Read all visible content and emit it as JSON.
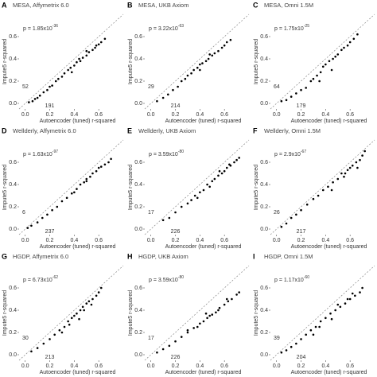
{
  "chart_data": [
    {
      "type": "scatter",
      "panel_label": "A",
      "title": "MESA, Affymetrix 6.0",
      "p_value": "p = 1.85x10",
      "p_exponent": "-36",
      "count_left": 52,
      "count_bottom": 191,
      "xlabel": "Autoencoder (tuned) r-squared",
      "ylabel": "Impute5 r-squared",
      "color": "#000000",
      "xlim": [
        -0.05,
        0.8
      ],
      "ylim": [
        -0.05,
        0.8
      ],
      "xticks": [
        {
          "value": 0,
          "label": "0.0"
        },
        0.2,
        0.4,
        0.6
      ],
      "yticks": [
        {
          "value": 0,
          "label": "0.0"
        },
        0.2,
        0.4,
        0.6
      ],
      "x": [
        0.03,
        0.06,
        0.08,
        0.1,
        0.12,
        0.15,
        0.18,
        0.2,
        0.22,
        0.25,
        0.27,
        0.3,
        0.32,
        0.35,
        0.37,
        0.4,
        0.42,
        0.45,
        0.47,
        0.5,
        0.52,
        0.55,
        0.57,
        0.6,
        0.62,
        0.65,
        0.38,
        0.44,
        0.5,
        0.58
      ],
      "y": [
        0.01,
        0.02,
        0.04,
        0.05,
        0.07,
        0.1,
        0.12,
        0.15,
        0.16,
        0.2,
        0.22,
        0.24,
        0.27,
        0.3,
        0.32,
        0.34,
        0.37,
        0.38,
        0.41,
        0.43,
        0.46,
        0.48,
        0.5,
        0.53,
        0.55,
        0.58,
        0.28,
        0.4,
        0.47,
        0.52
      ]
    },
    {
      "type": "scatter",
      "panel_label": "B",
      "title": "MESA, UKB Axiom",
      "p_value": "p = 3.22x10",
      "p_exponent": "-63",
      "count_left": 29,
      "count_bottom": 214,
      "xlabel": "Autoencoder (tuned) r-squared",
      "ylabel": "Impute5 r-squared",
      "color": "#000000",
      "xlim": [
        -0.05,
        0.8
      ],
      "ylim": [
        -0.05,
        0.8
      ],
      "xticks": [
        {
          "value": 0,
          "label": "0.0"
        },
        0.2,
        0.4,
        0.6
      ],
      "yticks": [
        {
          "value": 0,
          "label": "0.0"
        },
        0.2,
        0.4,
        0.6
      ],
      "x": [
        0.05,
        0.1,
        0.14,
        0.18,
        0.22,
        0.25,
        0.28,
        0.3,
        0.33,
        0.35,
        0.38,
        0.4,
        0.42,
        0.45,
        0.47,
        0.5,
        0.52,
        0.55,
        0.58,
        0.6,
        0.62,
        0.65,
        0.4,
        0.48
      ],
      "y": [
        0.02,
        0.05,
        0.08,
        0.12,
        0.15,
        0.2,
        0.22,
        0.25,
        0.27,
        0.3,
        0.32,
        0.35,
        0.36,
        0.38,
        0.4,
        0.43,
        0.45,
        0.47,
        0.5,
        0.52,
        0.55,
        0.57,
        0.3,
        0.44
      ]
    },
    {
      "type": "scatter",
      "panel_label": "C",
      "title": "MESA, Omni 1.5M",
      "p_value": "p = 1.75x10",
      "p_exponent": "-25",
      "count_left": 64,
      "count_bottom": 179,
      "xlabel": "Autoencoder (tuned) r-squared",
      "ylabel": "Impute5 r-squared",
      "color": "#000000",
      "xlim": [
        -0.05,
        0.8
      ],
      "ylim": [
        -0.05,
        0.8
      ],
      "xticks": [
        {
          "value": 0,
          "label": "0.0"
        },
        0.2,
        0.4,
        0.6
      ],
      "yticks": [
        {
          "value": 0,
          "label": "0.0"
        },
        0.2,
        0.4,
        0.6
      ],
      "x": [
        0.04,
        0.08,
        0.12,
        0.16,
        0.2,
        0.24,
        0.28,
        0.3,
        0.33,
        0.36,
        0.38,
        0.4,
        0.43,
        0.46,
        0.48,
        0.5,
        0.53,
        0.55,
        0.58,
        0.6,
        0.63,
        0.66,
        0.45,
        0.35
      ],
      "y": [
        0.02,
        0.03,
        0.06,
        0.09,
        0.12,
        0.14,
        0.2,
        0.22,
        0.25,
        0.28,
        0.33,
        0.35,
        0.38,
        0.4,
        0.42,
        0.44,
        0.48,
        0.5,
        0.52,
        0.55,
        0.58,
        0.62,
        0.3,
        0.2
      ]
    },
    {
      "type": "scatter",
      "panel_label": "D",
      "title": "Wellderly, Affymetrix 6.0",
      "p_value": "p = 1.63x10",
      "p_exponent": "-97",
      "count_left": 6,
      "count_bottom": 237,
      "xlabel": "Autoencoder (tuned) r-squared",
      "ylabel": "Impute5 r-squared",
      "color": "#000000",
      "xlim": [
        -0.05,
        0.8
      ],
      "ylim": [
        -0.05,
        0.8
      ],
      "xticks": [
        {
          "value": 0,
          "label": "0.0"
        },
        0.2,
        0.4,
        0.6
      ],
      "yticks": [
        {
          "value": 0,
          "label": "0.0"
        },
        0.2,
        0.4,
        0.6
      ],
      "x": [
        0.02,
        0.05,
        0.1,
        0.14,
        0.18,
        0.22,
        0.26,
        0.3,
        0.34,
        0.38,
        0.42,
        0.45,
        0.48,
        0.5,
        0.53,
        0.55,
        0.58,
        0.6,
        0.62,
        0.65,
        0.68,
        0.7,
        0.5,
        0.4
      ],
      "y": [
        0.01,
        0.03,
        0.06,
        0.1,
        0.13,
        0.17,
        0.2,
        0.25,
        0.28,
        0.32,
        0.36,
        0.4,
        0.42,
        0.45,
        0.47,
        0.5,
        0.52,
        0.55,
        0.56,
        0.58,
        0.6,
        0.63,
        0.43,
        0.33
      ]
    },
    {
      "type": "scatter",
      "panel_label": "E",
      "title": "Wellderly, UKB Axiom",
      "p_value": "p = 3.59x10",
      "p_exponent": "-80",
      "count_left": 17,
      "count_bottom": 226,
      "xlabel": "Autoencoder (tuned) r-squared",
      "ylabel": "Impute5 r-squared",
      "color": "#000000",
      "xlim": [
        -0.05,
        0.8
      ],
      "ylim": [
        -0.05,
        0.8
      ],
      "xticks": [
        {
          "value": 0,
          "label": "0.0"
        },
        0.2,
        0.4,
        0.6
      ],
      "yticks": [
        {
          "value": 0,
          "label": "0.0"
        },
        0.2,
        0.4,
        0.6
      ],
      "x": [
        0.1,
        0.15,
        0.2,
        0.25,
        0.3,
        0.33,
        0.36,
        0.4,
        0.43,
        0.46,
        0.5,
        0.52,
        0.55,
        0.58,
        0.6,
        0.62,
        0.65,
        0.68,
        0.7,
        0.72,
        0.48,
        0.38,
        0.56,
        0.64
      ],
      "y": [
        0.08,
        0.1,
        0.15,
        0.2,
        0.23,
        0.26,
        0.3,
        0.33,
        0.35,
        0.4,
        0.43,
        0.45,
        0.48,
        0.5,
        0.52,
        0.55,
        0.57,
        0.6,
        0.62,
        0.64,
        0.38,
        0.28,
        0.52,
        0.58
      ]
    },
    {
      "type": "scatter",
      "panel_label": "F",
      "title": "Wellderly, Omni 1.5M",
      "p_value": "p = 2.9x10",
      "p_exponent": "-67",
      "count_left": 26,
      "count_bottom": 217,
      "xlabel": "Autoencoder (tuned) r-squared",
      "ylabel": "Impute5 r-squared",
      "color": "#000000",
      "xlim": [
        -0.05,
        0.8
      ],
      "ylim": [
        -0.05,
        0.8
      ],
      "xticks": [
        {
          "value": 0,
          "label": "0.0"
        },
        0.2,
        0.4,
        0.6
      ],
      "yticks": [
        {
          "value": 0,
          "label": "0.0"
        },
        0.2,
        0.4,
        0.6
      ],
      "x": [
        0.04,
        0.08,
        0.12,
        0.16,
        0.2,
        0.25,
        0.3,
        0.34,
        0.38,
        0.42,
        0.46,
        0.5,
        0.53,
        0.56,
        0.58,
        0.6,
        0.62,
        0.65,
        0.68,
        0.7,
        0.72,
        0.45,
        0.55,
        0.66
      ],
      "y": [
        0.02,
        0.05,
        0.1,
        0.13,
        0.17,
        0.22,
        0.27,
        0.3,
        0.35,
        0.38,
        0.42,
        0.45,
        0.5,
        0.5,
        0.53,
        0.55,
        0.57,
        0.6,
        0.62,
        0.66,
        0.7,
        0.35,
        0.47,
        0.55
      ]
    },
    {
      "type": "scatter",
      "panel_label": "G",
      "title": "HGDP, Affymetrix 6.0",
      "p_value": "p = 6.73x10",
      "p_exponent": "-62",
      "count_left": 30,
      "count_bottom": 213,
      "xlabel": "Autoencoder (tuned) r-squared",
      "ylabel": "Impute5 r-squared",
      "color": "#000000",
      "xlim": [
        -0.05,
        0.8
      ],
      "ylim": [
        -0.05,
        0.8
      ],
      "xticks": [
        {
          "value": 0,
          "label": "0.0"
        },
        0.2,
        0.4,
        0.6
      ],
      "yticks": [
        {
          "value": 0,
          "label": "0.0"
        },
        0.2,
        0.4,
        0.6
      ],
      "x": [
        0.05,
        0.1,
        0.15,
        0.2,
        0.24,
        0.28,
        0.32,
        0.35,
        0.38,
        0.4,
        0.42,
        0.45,
        0.47,
        0.5,
        0.52,
        0.55,
        0.58,
        0.6,
        0.3,
        0.36,
        0.44,
        0.48,
        0.54,
        0.62
      ],
      "y": [
        0.03,
        0.06,
        0.1,
        0.14,
        0.18,
        0.22,
        0.25,
        0.3,
        0.33,
        0.35,
        0.37,
        0.4,
        0.43,
        0.46,
        0.48,
        0.5,
        0.53,
        0.56,
        0.2,
        0.27,
        0.32,
        0.4,
        0.45,
        0.6
      ]
    },
    {
      "type": "scatter",
      "panel_label": "H",
      "title": "HGDP, UKB Axiom",
      "p_value": "p = 3.59x10",
      "p_exponent": "-80",
      "count_left": 17,
      "count_bottom": 226,
      "xlabel": "Autoencoder (tuned) r-squared",
      "ylabel": "Impute5 r-squared",
      "color": "#000000",
      "xlim": [
        -0.05,
        0.8
      ],
      "ylim": [
        -0.05,
        0.8
      ],
      "xticks": [
        {
          "value": 0,
          "label": "0.0"
        },
        0.2,
        0.4,
        0.6
      ],
      "yticks": [
        {
          "value": 0,
          "label": "0.0"
        },
        0.2,
        0.4,
        0.6
      ],
      "x": [
        0.05,
        0.1,
        0.15,
        0.2,
        0.25,
        0.3,
        0.35,
        0.4,
        0.43,
        0.46,
        0.5,
        0.53,
        0.56,
        0.6,
        0.63,
        0.66,
        0.7,
        0.72,
        0.38,
        0.48,
        0.55,
        0.62,
        0.45,
        0.3
      ],
      "y": [
        0.02,
        0.05,
        0.08,
        0.12,
        0.16,
        0.2,
        0.24,
        0.28,
        0.3,
        0.33,
        0.36,
        0.38,
        0.42,
        0.45,
        0.48,
        0.5,
        0.54,
        0.56,
        0.25,
        0.35,
        0.4,
        0.5,
        0.37,
        0.22
      ]
    },
    {
      "type": "scatter",
      "panel_label": "I",
      "title": "HGDP, Omni 1.5M",
      "p_value": "p = 1.17x10",
      "p_exponent": "-60",
      "count_left": 39,
      "count_bottom": 204,
      "xlabel": "Autoencoder (tuned) r-squared",
      "ylabel": "Impute5 r-squared",
      "color": "#000000",
      "xlim": [
        -0.05,
        0.8
      ],
      "ylim": [
        -0.05,
        0.8
      ],
      "xticks": [
        {
          "value": 0,
          "label": "0.0"
        },
        0.2,
        0.4,
        0.6
      ],
      "yticks": [
        {
          "value": 0,
          "label": "0.0"
        },
        0.2,
        0.4,
        0.6
      ],
      "x": [
        0.04,
        0.08,
        0.12,
        0.16,
        0.2,
        0.24,
        0.28,
        0.32,
        0.36,
        0.4,
        0.44,
        0.48,
        0.52,
        0.56,
        0.6,
        0.64,
        0.68,
        0.7,
        0.35,
        0.45,
        0.5,
        0.58,
        0.3,
        0.62
      ],
      "y": [
        0.02,
        0.04,
        0.07,
        0.1,
        0.14,
        0.18,
        0.22,
        0.25,
        0.3,
        0.33,
        0.37,
        0.4,
        0.43,
        0.46,
        0.5,
        0.53,
        0.56,
        0.6,
        0.25,
        0.32,
        0.45,
        0.5,
        0.18,
        0.55
      ]
    }
  ]
}
